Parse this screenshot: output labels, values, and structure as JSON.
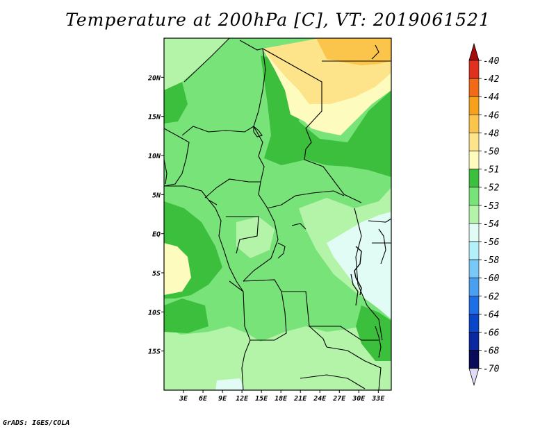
{
  "title": "Temperature at 200hPa [C], VT: 2019061521",
  "credit": "GrADS: IGES/COLA",
  "map": {
    "lat_labels": [
      "20N",
      "15N",
      "10N",
      "5N",
      "EQ",
      "5S",
      "10S",
      "15S"
    ],
    "lat_values": [
      20,
      15,
      10,
      5,
      0,
      -5,
      -10,
      -15
    ],
    "lon_labels": [
      "3E",
      "6E",
      "9E",
      "12E",
      "15E",
      "18E",
      "21E",
      "24E",
      "27E",
      "30E",
      "33E"
    ],
    "lon_values": [
      3,
      6,
      9,
      12,
      15,
      18,
      21,
      24,
      27,
      30,
      33
    ],
    "lon_range": [
      0,
      35
    ],
    "lat_range": [
      -20,
      25
    ]
  },
  "colorbar": {
    "labels": [
      "-40",
      "-42",
      "-44",
      "-46",
      "-48",
      "-50",
      "-51",
      "-52",
      "-53",
      "-54",
      "-56",
      "-58",
      "-60",
      "-62",
      "-64",
      "-66",
      "-68",
      "-70"
    ],
    "colors": [
      "#a50d0d",
      "#e0301e",
      "#f26a16",
      "#f7a11a",
      "#fbc44a",
      "#fde38a",
      "#fefbbe",
      "#3cbf3c",
      "#78e378",
      "#b4f4a8",
      "#e0fcf4",
      "#b4f0fa",
      "#78c8f8",
      "#4aa0f0",
      "#1e6ee6",
      "#0a46c8",
      "#0a28a0",
      "#0a0a5a",
      "#e0dcf6"
    ]
  }
}
